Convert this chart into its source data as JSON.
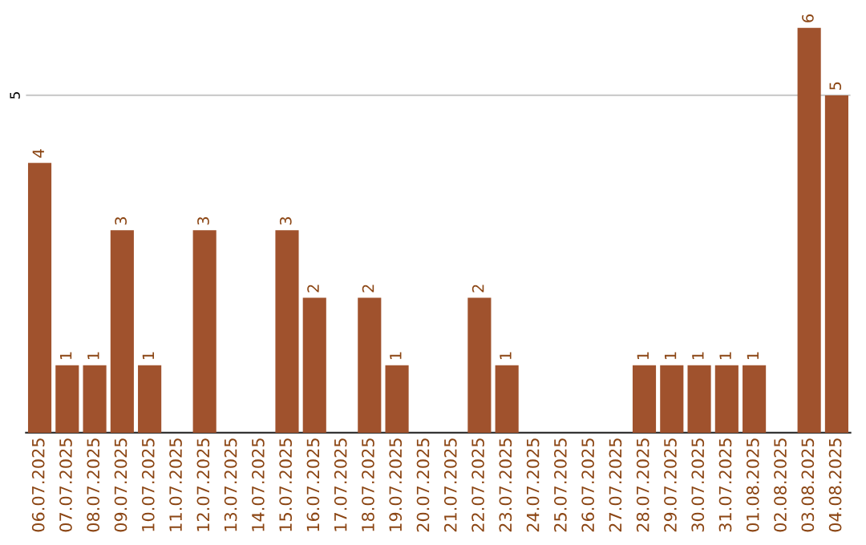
{
  "chart_data": {
    "type": "bar",
    "categories": [
      "06.07.2025",
      "07.07.2025",
      "08.07.2025",
      "09.07.2025",
      "10.07.2025",
      "11.07.2025",
      "12.07.2025",
      "13.07.2025",
      "14.07.2025",
      "15.07.2025",
      "16.07.2025",
      "17.07.2025",
      "18.07.2025",
      "19.07.2025",
      "20.07.2025",
      "21.07.2025",
      "22.07.2025",
      "23.07.2025",
      "24.07.2025",
      "25.07.2025",
      "26.07.2025",
      "27.07.2025",
      "28.07.2025",
      "29.07.2025",
      "30.07.2025",
      "31.07.2025",
      "01.08.2025",
      "02.08.2025",
      "03.08.2025",
      "04.08.2025"
    ],
    "values": [
      4,
      1,
      1,
      3,
      1,
      0,
      3,
      0,
      0,
      3,
      2,
      0,
      2,
      1,
      0,
      0,
      2,
      1,
      0,
      0,
      0,
      0,
      1,
      1,
      1,
      1,
      1,
      0,
      6,
      5
    ],
    "value_labels": [
      "4",
      "1",
      "1",
      "3",
      "1",
      null,
      "3",
      null,
      null,
      "3",
      "2",
      null,
      "2",
      "1",
      null,
      null,
      "2",
      "1",
      null,
      null,
      null,
      null,
      "1",
      "1",
      "1",
      "1",
      "1",
      null,
      "6",
      "5"
    ],
    "color": "#a0522d",
    "ref_lines": [
      {
        "axis": "y",
        "value": 5,
        "label": "5",
        "color": "#cccccc"
      }
    ]
  }
}
